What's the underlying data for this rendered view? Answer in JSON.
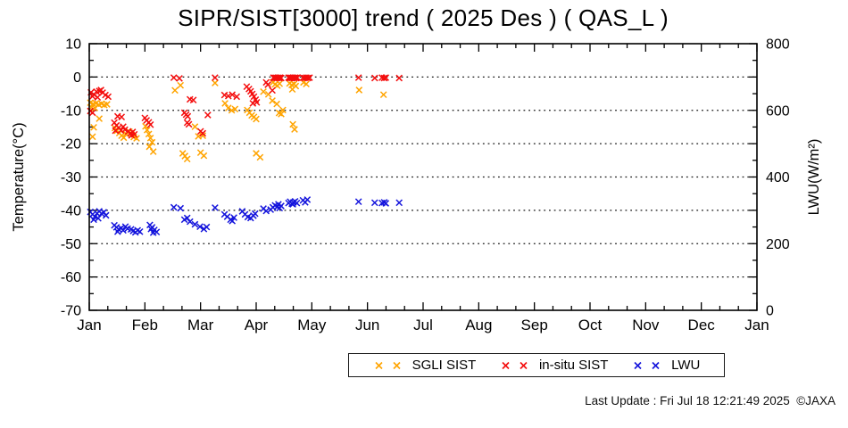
{
  "page": {
    "footer": "Last Update : Fri Jul 18 12:21:49 2025  ©JAXA"
  },
  "chart_data": {
    "type": "scatter",
    "title": "SIPR/SIST[3000] trend ( 2025 Des ) ( QAS_L )",
    "legend_position": "bottom",
    "grid": {
      "dotted_lines_at_temperature": [
        0,
        -10,
        -20,
        -30,
        -40,
        -50,
        -60
      ]
    },
    "x_axis": {
      "unit": "month",
      "range": [
        0,
        12
      ],
      "tick_labels": [
        "Jan",
        "Feb",
        "Mar",
        "Apr",
        "May",
        "Jun",
        "Jul",
        "Aug",
        "Sep",
        "Oct",
        "Nov",
        "Dec",
        "Jan"
      ],
      "minor_ticks_per_month": 2
    },
    "y_axis_left": {
      "label": "Temperature(°C)",
      "range": [
        -70,
        10
      ],
      "major_tick_step": 10,
      "minor_tick_step": 5,
      "tick_labels": [
        "10",
        "0",
        "-10",
        "-20",
        "-30",
        "-40",
        "-50",
        "-60",
        "-70"
      ]
    },
    "y_axis_right": {
      "label": "LWU(W/m²)",
      "range": [
        0,
        800
      ],
      "labeled_tick_step": 200,
      "major_tick_step": 100,
      "minor_tick_step": 50,
      "tick_labels": [
        "800",
        "600",
        "400",
        "200",
        "0"
      ]
    },
    "series": [
      {
        "name": "SGLI SIST",
        "color": "#FFA400",
        "marker": "x",
        "axis": "left",
        "unit": "°C",
        "points": [
          [
            0.02,
            -7.7
          ],
          [
            0.07,
            -8.1
          ],
          [
            0.12,
            -7.9
          ],
          [
            0.17,
            -8.3
          ],
          [
            0.22,
            -8.0
          ],
          [
            0.27,
            -8.4
          ],
          [
            0.32,
            -8.2
          ],
          [
            0.04,
            -9.1
          ],
          [
            0.1,
            -9.3
          ],
          [
            0.18,
            -12.5
          ],
          [
            0.08,
            -15.1
          ],
          [
            0.06,
            -17.9
          ],
          [
            0.46,
            -15.3
          ],
          [
            0.5,
            -16.1
          ],
          [
            0.54,
            -16.8
          ],
          [
            0.58,
            -17.6
          ],
          [
            0.62,
            -18.2
          ],
          [
            0.66,
            -17.0
          ],
          [
            0.72,
            -16.4
          ],
          [
            0.76,
            -17.3
          ],
          [
            0.8,
            -18.0
          ],
          [
            0.85,
            -18.4
          ],
          [
            1.01,
            -14.8
          ],
          [
            1.04,
            -15.9
          ],
          [
            1.07,
            -17.1
          ],
          [
            1.1,
            -18.3
          ],
          [
            1.13,
            -19.6
          ],
          [
            1.08,
            -20.9
          ],
          [
            1.15,
            -22.4
          ],
          [
            1.54,
            -4.0
          ],
          [
            1.64,
            -2.5
          ],
          [
            1.68,
            -22.9
          ],
          [
            1.72,
            -23.7
          ],
          [
            1.76,
            -24.6
          ],
          [
            1.9,
            -14.9
          ],
          [
            1.96,
            -17.8
          ],
          [
            2.04,
            -17.6
          ],
          [
            2.0,
            -22.7
          ],
          [
            2.06,
            -23.6
          ],
          [
            2.26,
            -1.8
          ],
          [
            2.44,
            -7.9
          ],
          [
            2.5,
            -9.3
          ],
          [
            2.56,
            -10.0
          ],
          [
            2.62,
            -9.6
          ],
          [
            2.84,
            -9.9
          ],
          [
            2.88,
            -10.7
          ],
          [
            2.92,
            -11.5
          ],
          [
            2.96,
            -12.0
          ],
          [
            3.0,
            -12.6
          ],
          [
            3.0,
            -22.9
          ],
          [
            3.07,
            -24.1
          ],
          [
            3.13,
            -4.4
          ],
          [
            3.22,
            -5.2
          ],
          [
            3.29,
            -7.1
          ],
          [
            3.37,
            -8.1
          ],
          [
            3.41,
            -10.8
          ],
          [
            3.45,
            -11.1
          ],
          [
            3.48,
            -9.9
          ],
          [
            3.3,
            -1.6
          ],
          [
            3.34,
            -2.2
          ],
          [
            3.38,
            -2.6
          ],
          [
            3.42,
            -2.0
          ],
          [
            3.6,
            -1.9
          ],
          [
            3.64,
            -2.4
          ],
          [
            3.68,
            -2.1
          ],
          [
            3.71,
            -2.7
          ],
          [
            3.85,
            -1.6
          ],
          [
            3.9,
            -2.1
          ],
          [
            3.65,
            -3.7
          ],
          [
            3.66,
            -14.2
          ],
          [
            3.69,
            -15.7
          ],
          [
            4.85,
            -3.9
          ],
          [
            5.29,
            -5.3
          ]
        ]
      },
      {
        "name": "in-situ SIST",
        "color": "#F40D0D",
        "marker": "x",
        "axis": "left",
        "unit": "°C",
        "points": [
          [
            0.03,
            -4.6
          ],
          [
            0.08,
            -5.2
          ],
          [
            0.13,
            -4.4
          ],
          [
            0.18,
            -4.2
          ],
          [
            0.24,
            -4.7
          ],
          [
            0.29,
            -5.4
          ],
          [
            0.34,
            -5.9
          ],
          [
            0.15,
            -6.1
          ],
          [
            0.06,
            -5.8
          ],
          [
            0.21,
            -3.9
          ],
          [
            0.02,
            -10.2
          ],
          [
            0.06,
            -10.7
          ],
          [
            0.51,
            -11.8
          ],
          [
            0.58,
            -12.0
          ],
          [
            0.45,
            -13.7
          ],
          [
            0.49,
            -14.5
          ],
          [
            0.53,
            -15.2
          ],
          [
            0.57,
            -16.0
          ],
          [
            0.61,
            -14.9
          ],
          [
            0.64,
            -15.8
          ],
          [
            0.47,
            -16.1
          ],
          [
            0.7,
            -16.3
          ],
          [
            0.74,
            -16.9
          ],
          [
            0.78,
            -16.5
          ],
          [
            0.81,
            -17.2
          ],
          [
            0.76,
            -17.5
          ],
          [
            1.0,
            -12.3
          ],
          [
            1.03,
            -13.0
          ],
          [
            1.07,
            -13.6
          ],
          [
            1.1,
            -14.3
          ],
          [
            1.52,
            -0.2
          ],
          [
            1.62,
            -0.4
          ],
          [
            1.71,
            -10.7
          ],
          [
            1.74,
            -11.3
          ],
          [
            1.77,
            -11.8
          ],
          [
            1.81,
            -6.7
          ],
          [
            1.87,
            -6.9
          ],
          [
            1.76,
            -13.7
          ],
          [
            1.79,
            -14.2
          ],
          [
            2.0,
            -16.3
          ],
          [
            2.04,
            -16.9
          ],
          [
            2.13,
            -11.4
          ],
          [
            2.26,
            -0.2
          ],
          [
            2.43,
            -5.4
          ],
          [
            2.5,
            -5.7
          ],
          [
            2.57,
            -5.3
          ],
          [
            2.65,
            -5.9
          ],
          [
            2.83,
            -2.9
          ],
          [
            2.87,
            -3.6
          ],
          [
            2.9,
            -4.3
          ],
          [
            2.93,
            -5.1
          ],
          [
            2.96,
            -5.9
          ],
          [
            2.99,
            -6.8
          ],
          [
            3.01,
            -7.6
          ],
          [
            2.94,
            -7.9
          ],
          [
            3.18,
            -1.6
          ],
          [
            3.21,
            -2.3
          ],
          [
            3.29,
            -4.0
          ],
          [
            3.31,
            -0.2
          ],
          [
            3.33,
            -0.3
          ],
          [
            3.35,
            -0.2
          ],
          [
            3.37,
            -0.3
          ],
          [
            3.39,
            -0.2
          ],
          [
            3.41,
            -0.3
          ],
          [
            3.43,
            -0.2
          ],
          [
            3.45,
            -0.3
          ],
          [
            3.58,
            -0.2
          ],
          [
            3.6,
            -0.3
          ],
          [
            3.62,
            -0.2
          ],
          [
            3.64,
            -0.3
          ],
          [
            3.66,
            -0.2
          ],
          [
            3.68,
            -0.3
          ],
          [
            3.7,
            -0.2
          ],
          [
            3.72,
            -0.3
          ],
          [
            3.74,
            -0.2
          ],
          [
            3.84,
            -0.2
          ],
          [
            3.87,
            -0.3
          ],
          [
            3.9,
            -0.2
          ],
          [
            3.93,
            -0.3
          ],
          [
            3.96,
            -0.2
          ],
          [
            4.84,
            -0.2
          ],
          [
            5.13,
            -0.3
          ],
          [
            5.26,
            -0.2
          ],
          [
            5.3,
            -0.3
          ],
          [
            5.33,
            -0.2
          ],
          [
            5.57,
            -0.3
          ]
        ]
      },
      {
        "name": "LWU",
        "color": "#1414DC",
        "marker": "x",
        "axis": "right",
        "unit": "W/m²",
        "points": [
          [
            0.02,
            295
          ],
          [
            0.06,
            288
          ],
          [
            0.1,
            281
          ],
          [
            0.14,
            291
          ],
          [
            0.18,
            297
          ],
          [
            0.22,
            290
          ],
          [
            0.26,
            294
          ],
          [
            0.3,
            285
          ],
          [
            0.08,
            272
          ],
          [
            0.16,
            276
          ],
          [
            0.45,
            255
          ],
          [
            0.49,
            249
          ],
          [
            0.53,
            243
          ],
          [
            0.57,
            246
          ],
          [
            0.51,
            236
          ],
          [
            0.61,
            240
          ],
          [
            0.65,
            251
          ],
          [
            0.69,
            245
          ],
          [
            0.75,
            243
          ],
          [
            0.79,
            238
          ],
          [
            0.83,
            234
          ],
          [
            0.87,
            240
          ],
          [
            0.91,
            236
          ],
          [
            1.09,
            256
          ],
          [
            1.11,
            244
          ],
          [
            1.13,
            249
          ],
          [
            1.15,
            233
          ],
          [
            1.17,
            241
          ],
          [
            1.21,
            235
          ],
          [
            1.52,
            309
          ],
          [
            1.64,
            306
          ],
          [
            1.71,
            272
          ],
          [
            1.76,
            277
          ],
          [
            1.81,
            266
          ],
          [
            1.9,
            258
          ],
          [
            1.99,
            251
          ],
          [
            2.06,
            244
          ],
          [
            2.11,
            250
          ],
          [
            2.26,
            308
          ],
          [
            2.43,
            288
          ],
          [
            2.48,
            281
          ],
          [
            2.54,
            272
          ],
          [
            2.57,
            268
          ],
          [
            2.6,
            278
          ],
          [
            2.75,
            297
          ],
          [
            2.8,
            288
          ],
          [
            2.85,
            280
          ],
          [
            2.9,
            277
          ],
          [
            2.95,
            284
          ],
          [
            2.98,
            290
          ],
          [
            3.13,
            305
          ],
          [
            3.18,
            298
          ],
          [
            3.26,
            302
          ],
          [
            3.3,
            309
          ],
          [
            3.34,
            315
          ],
          [
            3.38,
            311
          ],
          [
            3.4,
            318
          ],
          [
            3.42,
            307
          ],
          [
            3.45,
            313
          ],
          [
            3.58,
            322
          ],
          [
            3.61,
            326
          ],
          [
            3.64,
            320
          ],
          [
            3.66,
            318
          ],
          [
            3.67,
            324
          ],
          [
            3.7,
            327
          ],
          [
            3.73,
            322
          ],
          [
            3.84,
            330
          ],
          [
            3.88,
            324
          ],
          [
            3.92,
            332
          ],
          [
            4.84,
            326
          ],
          [
            5.13,
            323
          ],
          [
            5.26,
            322
          ],
          [
            5.3,
            324
          ],
          [
            5.33,
            321
          ],
          [
            5.57,
            323
          ]
        ]
      }
    ]
  }
}
